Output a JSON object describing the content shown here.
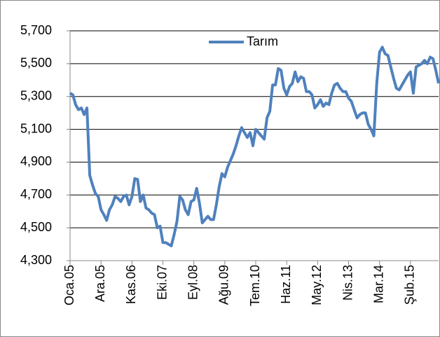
{
  "chart_data": {
    "type": "line",
    "categories": [
      "Oca.05",
      null,
      null,
      null,
      null,
      null,
      null,
      null,
      null,
      null,
      null,
      "Ara.05",
      null,
      null,
      null,
      null,
      null,
      null,
      null,
      null,
      null,
      null,
      "Kas.06",
      null,
      null,
      null,
      null,
      null,
      null,
      null,
      null,
      null,
      null,
      "Eki.07",
      null,
      null,
      null,
      null,
      null,
      null,
      null,
      null,
      null,
      null,
      "Eyl.08",
      null,
      null,
      null,
      null,
      null,
      null,
      null,
      null,
      null,
      null,
      "Ağu.09",
      null,
      null,
      null,
      null,
      null,
      null,
      null,
      null,
      null,
      null,
      "Tem.10",
      null,
      null,
      null,
      null,
      null,
      null,
      null,
      null,
      null,
      null,
      "Haz.11",
      null,
      null,
      null,
      null,
      null,
      null,
      null,
      null,
      null,
      null,
      "May.12",
      null,
      null,
      null,
      null,
      null,
      null,
      null,
      null,
      null,
      null,
      "Nis.13",
      null,
      null,
      null,
      null,
      null,
      null,
      null,
      null,
      null,
      null,
      "Mar.14",
      null,
      null,
      null,
      null,
      null,
      null,
      null,
      null,
      null,
      null,
      "Şub.15",
      null,
      null,
      null,
      null,
      null,
      null,
      null,
      null,
      null,
      null
    ],
    "series": [
      {
        "name": "Tarım",
        "color": "#4f81bd",
        "values": [
          5320,
          5310,
          5250,
          5220,
          5230,
          5190,
          5230,
          4820,
          4760,
          4710,
          4690,
          4610,
          4580,
          4545,
          4610,
          4640,
          4690,
          4680,
          4660,
          4690,
          4700,
          4640,
          4690,
          4800,
          4795,
          4660,
          4700,
          4620,
          4610,
          4590,
          4580,
          4500,
          4510,
          4410,
          4410,
          4400,
          4390,
          4460,
          4540,
          4690,
          4670,
          4610,
          4580,
          4660,
          4670,
          4740,
          4650,
          4530,
          4550,
          4570,
          4550,
          4550,
          4640,
          4750,
          4830,
          4810,
          4870,
          4910,
          4950,
          5000,
          5060,
          5110,
          5080,
          5050,
          5080,
          5000,
          5100,
          5080,
          5060,
          5040,
          5170,
          5210,
          5370,
          5370,
          5470,
          5460,
          5350,
          5310,
          5360,
          5380,
          5450,
          5390,
          5420,
          5410,
          5330,
          5330,
          5310,
          5230,
          5250,
          5280,
          5240,
          5260,
          5250,
          5320,
          5370,
          5380,
          5350,
          5330,
          5330,
          5290,
          5270,
          5220,
          5170,
          5190,
          5200,
          5200,
          5130,
          5100,
          5060,
          5380,
          5570,
          5600,
          5560,
          5550,
          5480,
          5410,
          5350,
          5340,
          5370,
          5400,
          5430,
          5450,
          5320,
          5480,
          5490,
          5500,
          5520,
          5500,
          5540,
          5530,
          5460,
          5380
        ]
      }
    ],
    "ylim": [
      4300,
      5700
    ],
    "yticks": [
      {
        "value": 4300,
        "label": "4,300"
      },
      {
        "value": 4500,
        "label": "4,500"
      },
      {
        "value": 4700,
        "label": "4,700"
      },
      {
        "value": 4900,
        "label": "4,900"
      },
      {
        "value": 5100,
        "label": "5,100"
      },
      {
        "value": 5300,
        "label": "5,300"
      },
      {
        "value": 5500,
        "label": "5,500"
      },
      {
        "value": 5700,
        "label": "5,700"
      }
    ],
    "grid": true,
    "legend": "top"
  }
}
